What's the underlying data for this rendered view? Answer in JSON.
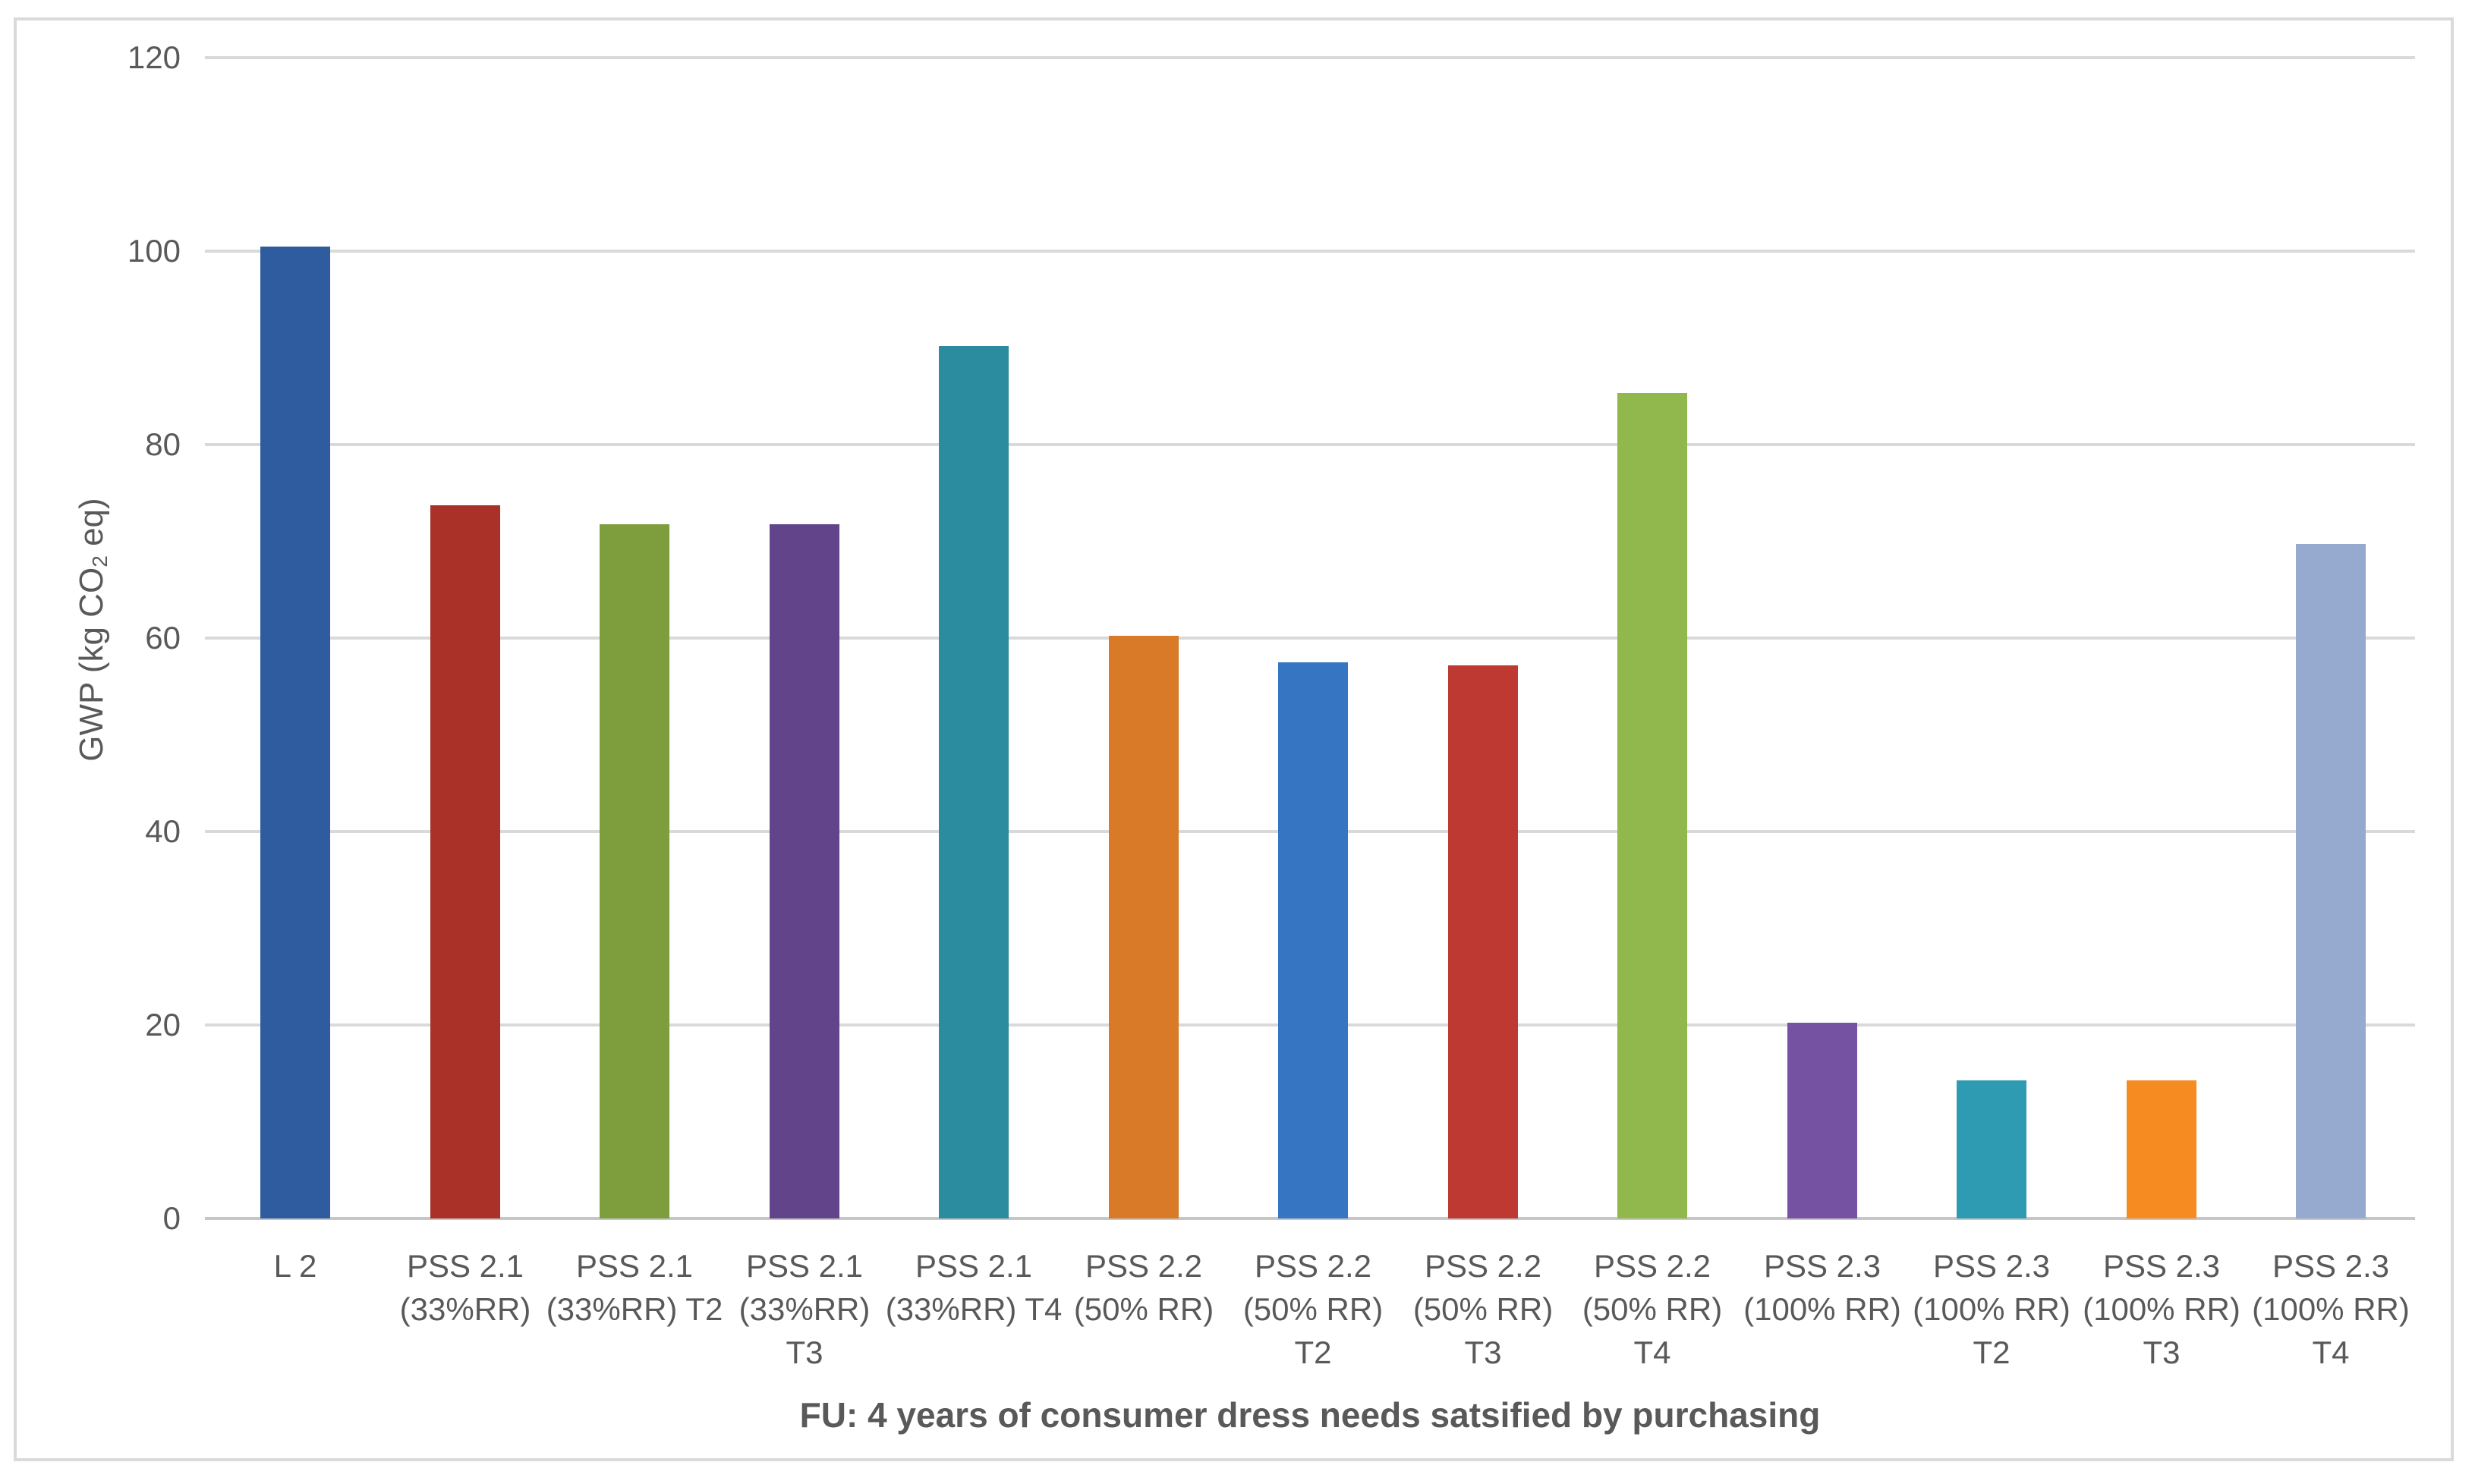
{
  "chart_data": {
    "type": "bar",
    "title_x": "FU: 4 years of consumer dress needs satsified by purchasing",
    "ylabel": "GWP (kg CO2 eq)",
    "ylabel_parts": [
      "GWP (kg CO",
      "2",
      " eq)"
    ],
    "ylim": [
      0,
      120
    ],
    "yticks": [
      0,
      20,
      40,
      60,
      80,
      100,
      120
    ],
    "grid": true,
    "legend": "none",
    "categories": [
      "L 2",
      "PSS 2.1 (33%RR)",
      "PSS 2.1 (33%RR) T2",
      "PSS 2.1 (33%RR) T3",
      "PSS 2.1 (33%RR) T4",
      "PSS 2.2 (50% RR)",
      "PSS 2.2 (50% RR) T2",
      "PSS 2.2 (50% RR) T3",
      "PSS 2.2 (50% RR) T4",
      "PSS 2.3 (100% RR)",
      "PSS 2.3 (100% RR) T2",
      "PSS 2.3 (100% RR) T3",
      "PSS 2.3 (100% RR) T4"
    ],
    "category_lines": [
      [
        "L 2"
      ],
      [
        "PSS 2.1",
        "(33%RR)"
      ],
      [
        "PSS 2.1",
        "(33%RR) T2"
      ],
      [
        "PSS 2.1",
        "(33%RR)",
        "T3"
      ],
      [
        "PSS 2.1",
        "(33%RR) T4"
      ],
      [
        "PSS 2.2",
        "(50% RR)"
      ],
      [
        "PSS 2.2",
        "(50% RR)",
        "T2"
      ],
      [
        "PSS 2.2",
        "(50% RR)",
        "T3"
      ],
      [
        "PSS 2.2",
        "(50% RR)",
        "T4"
      ],
      [
        "PSS 2.3",
        "(100% RR)"
      ],
      [
        "PSS 2.3",
        "(100% RR)",
        "T2"
      ],
      [
        "PSS 2.3",
        "(100% RR)",
        "T3"
      ],
      [
        "PSS 2.3",
        "(100% RR)",
        "T4"
      ]
    ],
    "values": [
      100.5,
      73.7,
      71.8,
      71.8,
      90.2,
      60.2,
      57.5,
      57.2,
      85.3,
      20.2,
      14.3,
      14.3,
      69.7
    ],
    "bar_colors": [
      "#2E5C9E",
      "#A93128",
      "#7E9D3C",
      "#614489",
      "#2C8C9F",
      "#D87A27",
      "#3575C1",
      "#BE3931",
      "#90B84C",
      "#7652A3",
      "#2F9BB2",
      "#F68B21",
      "#96AACF"
    ]
  },
  "colors": {
    "text": "#595959",
    "gridline": "#D9D9D9",
    "axis_line": "#C6C6C6",
    "frame_border": "#DADADA",
    "background": "#FFFFFF"
  }
}
